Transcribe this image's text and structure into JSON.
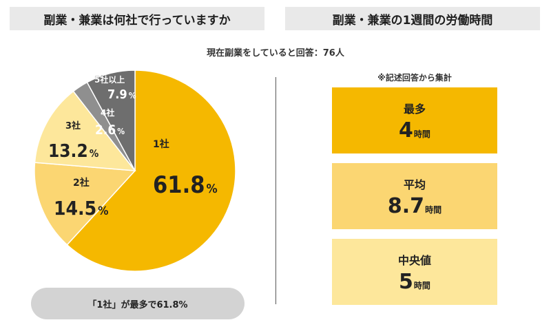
{
  "left_title": "副業・兼業は何社で行っていますか",
  "right_title": "副業・兼業の1週間の労働時間",
  "respondents": "現在副業をしていると回答：76人",
  "caption": "「1社」が最多で61.8%",
  "note": "※記述回答から集計",
  "stats": [
    {
      "label": "最多",
      "value": "4",
      "unit": "時間"
    },
    {
      "label": "平均",
      "value": "8.7",
      "unit": "時間"
    },
    {
      "label": "中央値",
      "value": "5",
      "unit": "時間"
    }
  ],
  "chart_data": {
    "type": "pie",
    "title": "",
    "slices": [
      {
        "name": "1社",
        "value": 61.8,
        "value_label": "61.8",
        "unit": "%",
        "color": "#f5b800"
      },
      {
        "name": "2社",
        "value": 14.5,
        "value_label": "14.5",
        "unit": "%",
        "color": "#fbd672"
      },
      {
        "name": "3社",
        "value": 13.2,
        "value_label": "13.2",
        "unit": "%",
        "color": "#fde79b"
      },
      {
        "name": "4社",
        "value": 2.6,
        "value_label": "2.6",
        "unit": "%",
        "color": "#8f8f8f"
      },
      {
        "name": "5社以上",
        "value": 7.9,
        "value_label": "7.9",
        "unit": "%",
        "color": "#6e6e6e"
      }
    ]
  }
}
